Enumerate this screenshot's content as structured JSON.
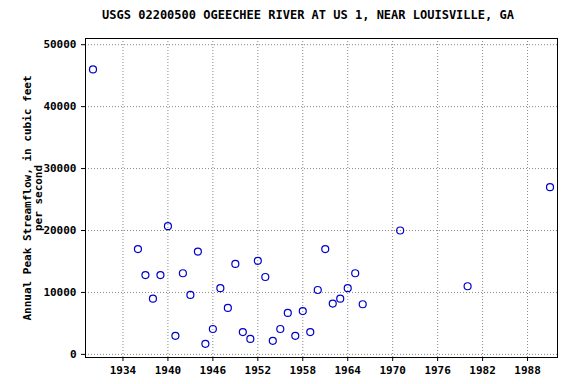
{
  "chart_data": {
    "type": "scatter",
    "title": "USGS 02200500 OGEECHEE RIVER AT US 1, NEAR LOUISVILLE, GA",
    "y_label": "Annual Peak Streamflow, in cubic feet\nper second",
    "x": [
      1930,
      1936,
      1937,
      1938,
      1939,
      1940,
      1941,
      1942,
      1943,
      1944,
      1945,
      1946,
      1947,
      1948,
      1949,
      1950,
      1951,
      1952,
      1953,
      1954,
      1955,
      1956,
      1957,
      1958,
      1959,
      1960,
      1961,
      1962,
      1963,
      1964,
      1965,
      1966,
      1971,
      1980,
      1991
    ],
    "values": [
      46000,
      17000,
      12800,
      9000,
      12800,
      20700,
      3000,
      13100,
      9600,
      16600,
      1700,
      4100,
      10700,
      7500,
      14600,
      3600,
      2500,
      15100,
      12500,
      2200,
      4100,
      6700,
      3000,
      7000,
      3600,
      10400,
      17000,
      8200,
      9000,
      10700,
      13100,
      8100,
      20000,
      11000,
      27000
    ],
    "color": "#0000cc",
    "marker": "circle",
    "xlim": [
      1929,
      1992
    ],
    "xticks": [
      1934,
      1940,
      1946,
      1952,
      1958,
      1964,
      1970,
      1976,
      1982,
      1988
    ],
    "ylim": [
      -500,
      51000
    ],
    "yticks": [
      0,
      10000,
      20000,
      30000,
      40000,
      50000
    ],
    "grid": true
  }
}
